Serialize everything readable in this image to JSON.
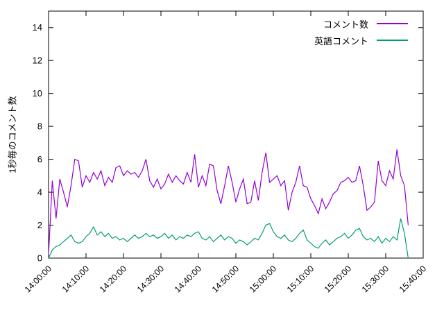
{
  "figure": {
    "background": "#ffffff",
    "border_color": "#000000",
    "text_color": "#000000"
  },
  "chart_data": {
    "type": "line",
    "title": "",
    "xlabel": "",
    "ylabel": "1秒毎のコメント数",
    "ylim": [
      0,
      15
    ],
    "y_ticks": [
      0,
      2,
      4,
      6,
      8,
      10,
      12,
      14
    ],
    "x_axis": {
      "start": "14:00:00",
      "end": "15:40:00",
      "total_minutes": 100,
      "tick_interval_minutes": 10,
      "tick_labels": [
        "14:00:00",
        "14:10:00",
        "14:20:00",
        "14:30:00",
        "14:40:00",
        "14:50:00",
        "15:00:00",
        "15:10:00",
        "15:20:00",
        "15:30:00",
        "15:40:00"
      ]
    },
    "sample_interval_seconds": 60,
    "legend_position": "top-right",
    "grid": false,
    "series": [
      {
        "name": "コメント数",
        "color": "#9400d3",
        "values": [
          0.2,
          4.7,
          2.4,
          4.8,
          4.0,
          3.1,
          4.4,
          6.0,
          5.9,
          4.3,
          5.0,
          4.6,
          5.2,
          4.8,
          5.3,
          4.4,
          4.9,
          4.6,
          5.5,
          5.6,
          5.0,
          5.3,
          5.1,
          5.2,
          4.9,
          5.3,
          6.0,
          4.7,
          4.3,
          4.8,
          4.2,
          4.5,
          5.1,
          4.6,
          5.0,
          4.7,
          4.5,
          5.2,
          4.6,
          6.3,
          4.3,
          5.0,
          4.4,
          5.7,
          5.6,
          4.1,
          3.3,
          4.4,
          5.6,
          4.6,
          3.4,
          4.2,
          4.8,
          3.3,
          3.4,
          4.7,
          3.5,
          5.2,
          6.4,
          4.6,
          4.8,
          5.0,
          4.4,
          4.7,
          2.9,
          4.0,
          4.6,
          5.6,
          4.4,
          4.3,
          3.6,
          3.2,
          2.7,
          3.6,
          3.0,
          3.4,
          3.9,
          4.1,
          4.6,
          4.7,
          4.9,
          4.6,
          4.7,
          5.6,
          4.4,
          2.9,
          3.1,
          3.4,
          5.9,
          4.7,
          4.4,
          5.3,
          4.8,
          6.6,
          5.0,
          4.4,
          2.0
        ]
      },
      {
        "name": "英語コメント",
        "color": "#009e73",
        "values": [
          0.0,
          0.5,
          0.7,
          0.8,
          1.0,
          1.2,
          1.4,
          1.0,
          0.9,
          1.0,
          1.3,
          1.5,
          1.9,
          1.4,
          1.6,
          1.3,
          1.5,
          1.2,
          1.3,
          1.1,
          1.2,
          1.0,
          1.2,
          1.4,
          1.2,
          1.3,
          1.5,
          1.3,
          1.4,
          1.2,
          1.3,
          1.5,
          1.2,
          1.4,
          1.1,
          1.3,
          1.2,
          1.4,
          1.3,
          1.5,
          1.6,
          1.2,
          1.1,
          1.3,
          1.0,
          1.2,
          1.4,
          1.1,
          1.3,
          1.2,
          0.9,
          1.1,
          1.0,
          0.8,
          1.0,
          1.2,
          1.1,
          1.5,
          2.0,
          2.1,
          1.6,
          1.3,
          1.2,
          1.4,
          1.1,
          1.0,
          1.2,
          1.5,
          1.7,
          1.1,
          0.9,
          0.7,
          0.6,
          0.9,
          1.1,
          0.8,
          1.0,
          1.2,
          1.3,
          1.5,
          1.2,
          1.4,
          1.7,
          1.8,
          1.3,
          1.1,
          1.2,
          1.0,
          1.3,
          0.9,
          1.2,
          1.0,
          1.3,
          1.1,
          2.4,
          1.5,
          0.0
        ]
      }
    ]
  }
}
